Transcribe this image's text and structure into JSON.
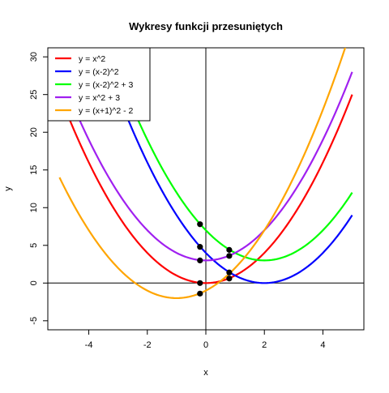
{
  "chart_data": {
    "type": "line",
    "title": "Wykresy funkcji przesuniętych",
    "xlabel": "x",
    "ylabel": "y",
    "xlim": [
      -5.4,
      5.4
    ],
    "ylim": [
      -6.2,
      31.2
    ],
    "x_ticks": [
      -4,
      -2,
      0,
      2,
      4
    ],
    "y_ticks": [
      -5,
      0,
      5,
      10,
      15,
      20,
      25,
      30
    ],
    "grid": false,
    "reference_lines": {
      "horizontal_y": 0,
      "vertical_x": 0,
      "color": "#000000"
    },
    "legend_position": "top-left",
    "series": [
      {
        "name": "y = x^2",
        "color": "#ff0000",
        "a": 1,
        "h": 0,
        "k": 0,
        "x_start": -5,
        "x_end": 5
      },
      {
        "name": "y = (x-2)^2",
        "color": "#0000ff",
        "a": 1,
        "h": 2,
        "k": 0,
        "x_start": -5,
        "x_end": 5
      },
      {
        "name": "y = (x-2)^2 + 3",
        "color": "#00ff00",
        "a": 1,
        "h": 2,
        "k": 3,
        "x_start": -5,
        "x_end": 5
      },
      {
        "name": "y = x^2 + 3",
        "color": "#a020f0",
        "a": 1,
        "h": 0,
        "k": 3,
        "x_start": -5,
        "x_end": 5
      },
      {
        "name": "y = (x+1)^2 - 2",
        "color": "#ffa500",
        "a": 1,
        "h": -1,
        "k": -2,
        "x_start": -5,
        "x_end": 5
      }
    ],
    "points": [
      {
        "x": -0.2,
        "y": 7.8
      },
      {
        "x": -0.2,
        "y": 4.8
      },
      {
        "x": -0.2,
        "y": 3.0
      },
      {
        "x": -0.2,
        "y": 0.0
      },
      {
        "x": -0.2,
        "y": -1.4
      },
      {
        "x": 0.8,
        "y": 4.4
      },
      {
        "x": 0.8,
        "y": 3.6
      },
      {
        "x": 0.8,
        "y": 1.4
      },
      {
        "x": 0.8,
        "y": 0.6
      }
    ],
    "point_color": "#000000"
  }
}
